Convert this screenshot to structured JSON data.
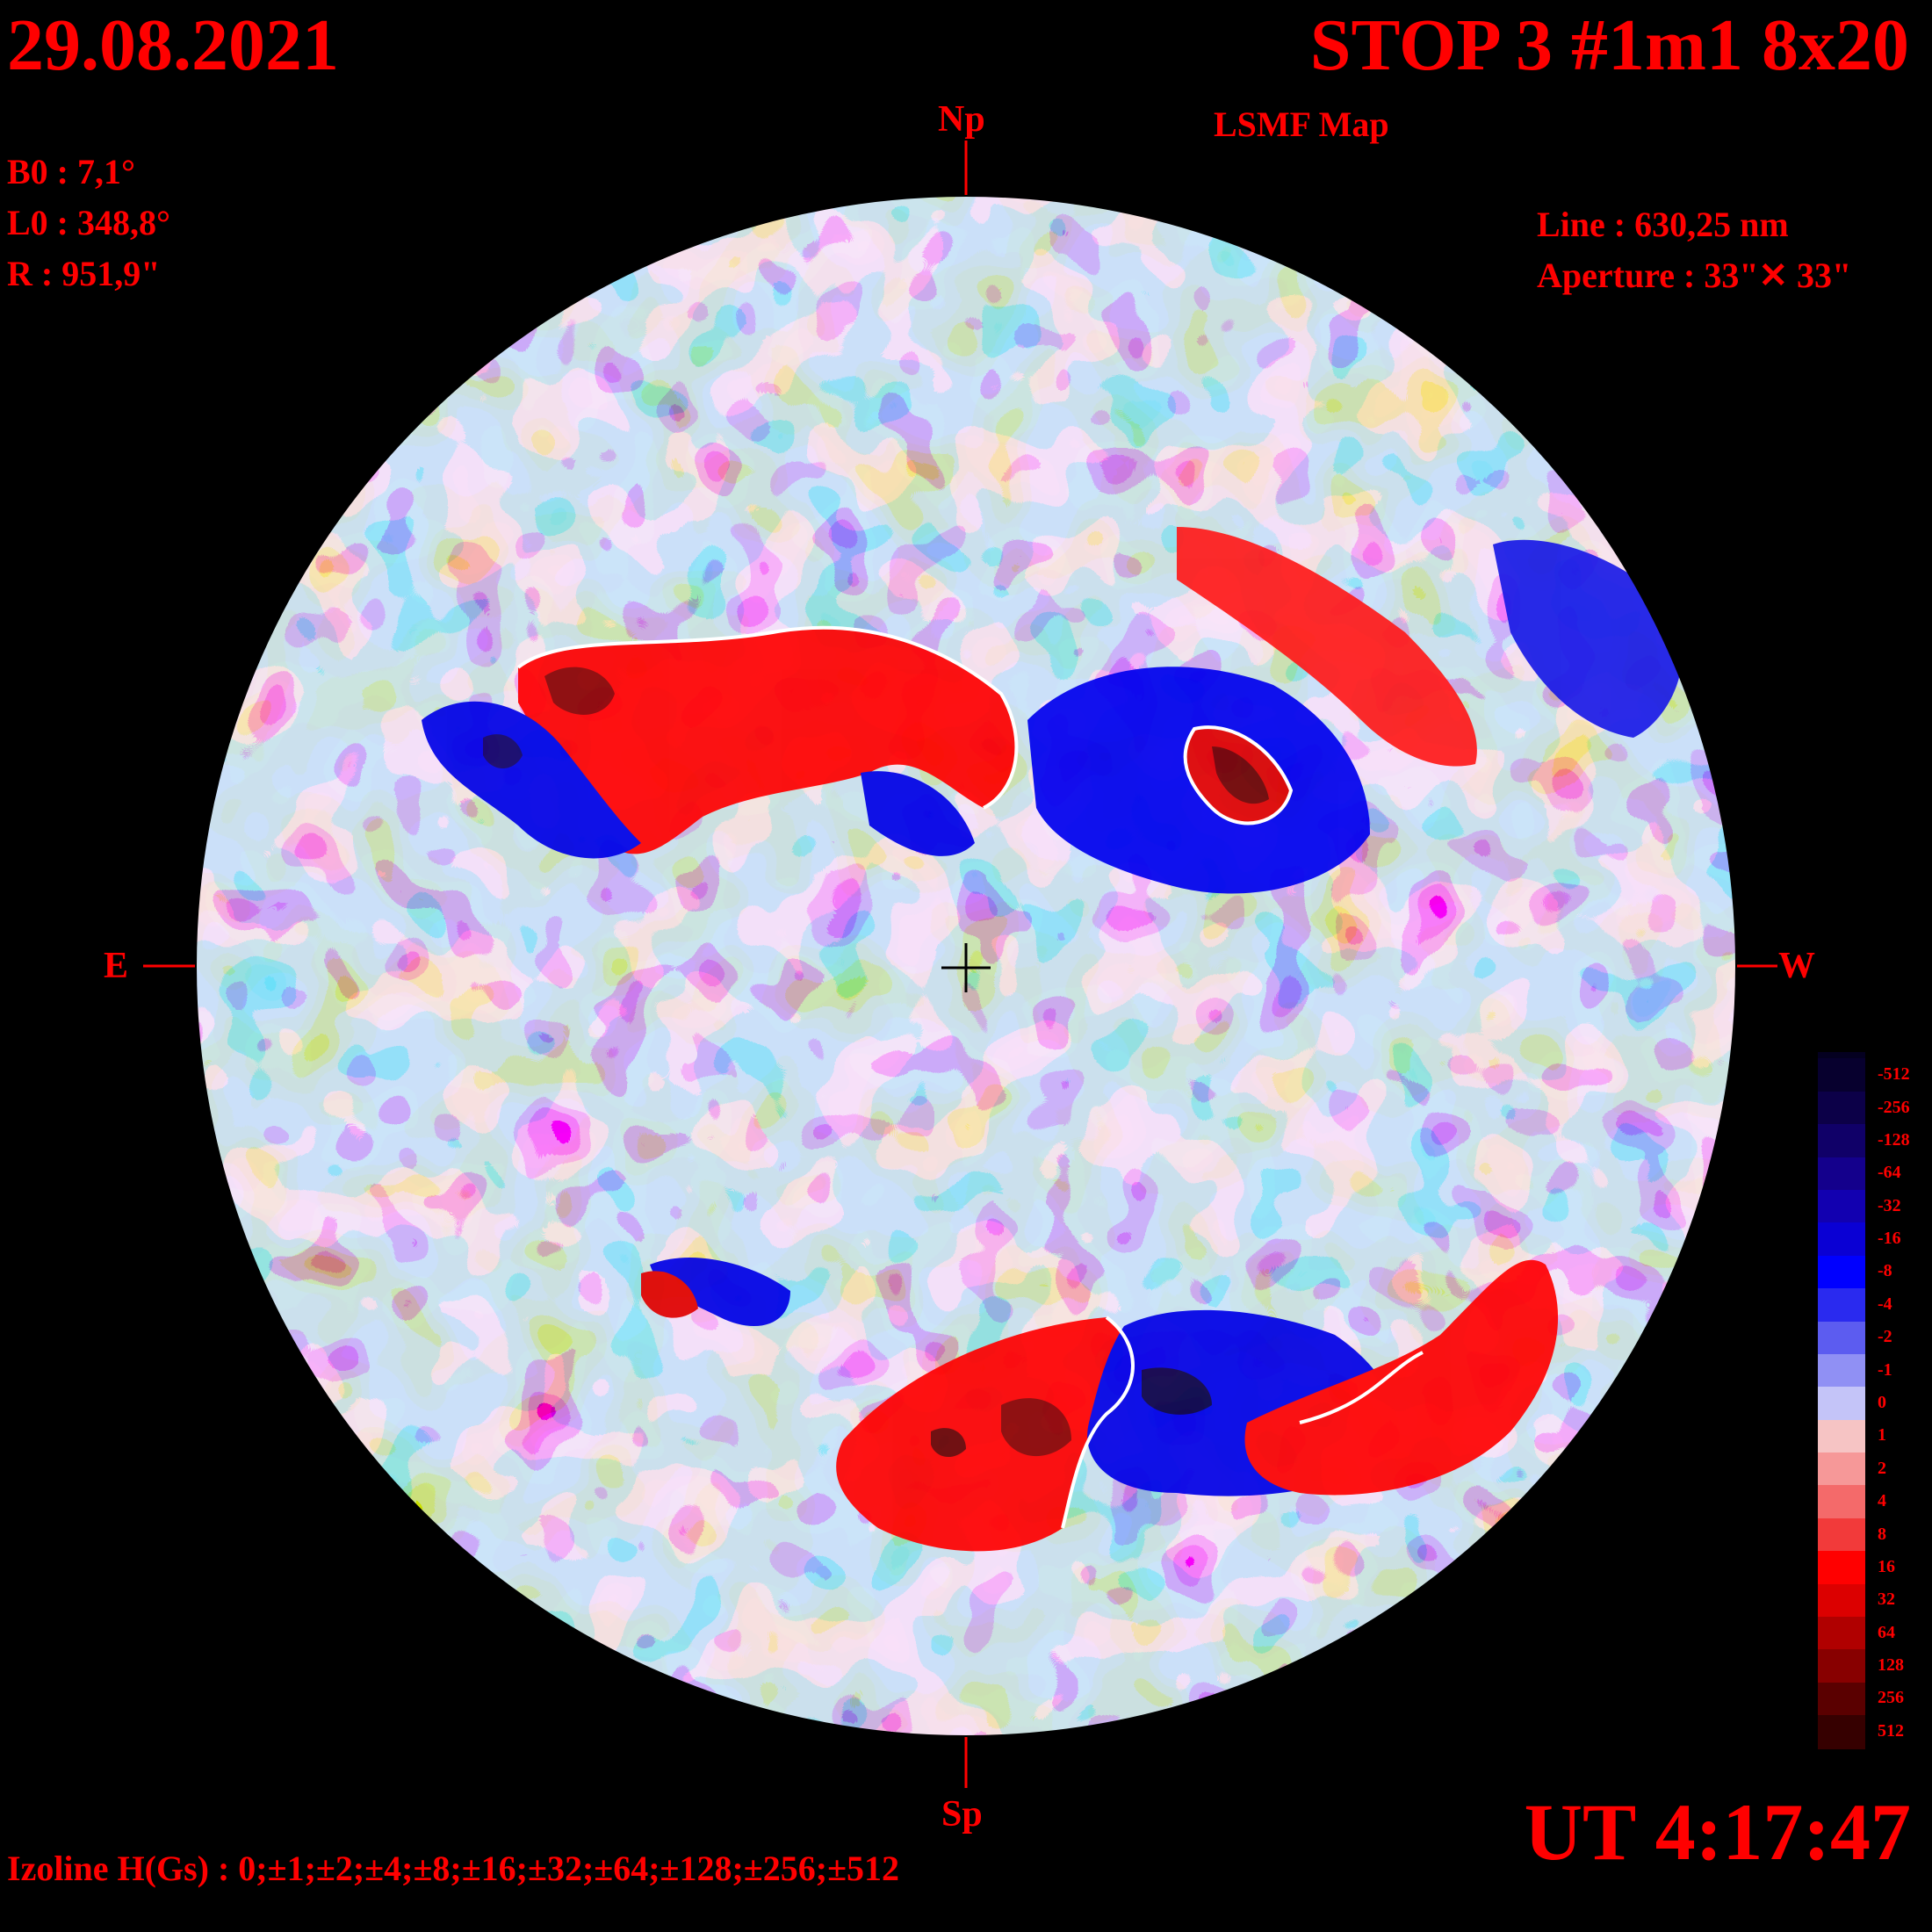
{
  "header": {
    "date": "29.08.2021",
    "title": "STOP 3 #1m1 8x20",
    "subtitle": "LSMF  Map"
  },
  "params_left": {
    "b0": "B0 : 7,1°",
    "l0": "L0 : 348,8°",
    "r": "R  : 951,9\""
  },
  "params_right": {
    "line": "Line :  630,25 nm",
    "aperture": "Aperture : 33\"✕ 33\""
  },
  "compass": {
    "north": "Np",
    "south": "Sp",
    "east": "E",
    "west": "W"
  },
  "footer": {
    "ut": "UT 4:17:47",
    "izoline": "Izoline H(Gs) : 0;±1;±2;±4;±8;±16;±32;±64;±128;±256;±512"
  },
  "legend": {
    "labels": [
      "-512",
      "-256",
      "-128",
      "-64",
      "-32",
      "-16",
      "-8",
      "-4",
      "-2",
      "-1",
      "0",
      "1",
      "2",
      "4",
      "8",
      "16",
      "32",
      "64",
      "128",
      "256",
      "512"
    ],
    "colors": [
      "#07002e",
      "#0c0048",
      "#100068",
      "#14008c",
      "#1200b0",
      "#0a00d4",
      "#0000ff",
      "#2a2aef",
      "#5c5cf0",
      "#9090f4",
      "#c4c4f8",
      "#f6c4c4",
      "#f69898",
      "#f46a6a",
      "#f23a3a",
      "#ff0000",
      "#dc0000",
      "#b00000",
      "#880000",
      "#5a0000",
      "#360000"
    ]
  },
  "colors": {
    "text": "#ff0000",
    "background": "#000000",
    "isoline": "#ffffff"
  }
}
